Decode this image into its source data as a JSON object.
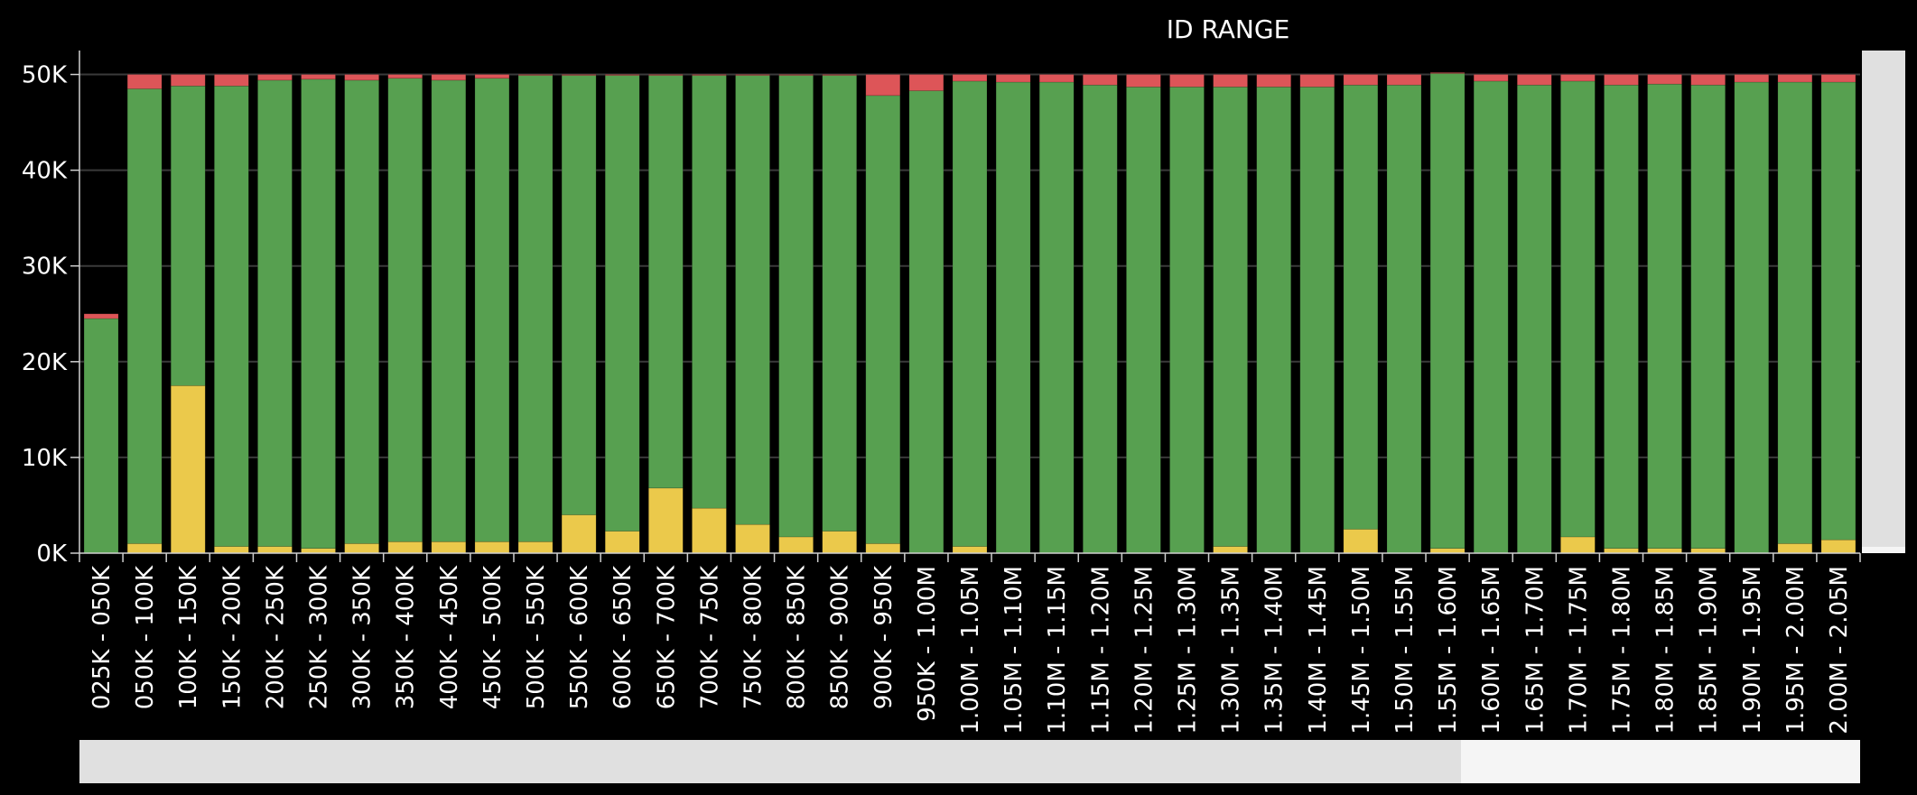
{
  "chart_data": {
    "type": "bar",
    "stacked": true,
    "title": "ID RANGE",
    "xlabel": "",
    "ylabel": "",
    "ylim": [
      0,
      52500
    ],
    "y_ticks": [
      {
        "value": 0,
        "label": "0K"
      },
      {
        "value": 10000,
        "label": "10K"
      },
      {
        "value": 20000,
        "label": "20K"
      },
      {
        "value": 30000,
        "label": "30K"
      },
      {
        "value": 40000,
        "label": "40K"
      },
      {
        "value": 50000,
        "label": "50K"
      }
    ],
    "grid": true,
    "legend": "none",
    "categories": [
      "025K - 050K",
      "050K - 100K",
      "100K - 150K",
      "150K - 200K",
      "200K - 250K",
      "250K - 300K",
      "300K - 350K",
      "350K - 400K",
      "400K - 450K",
      "450K - 500K",
      "500K - 550K",
      "550K - 600K",
      "600K - 650K",
      "650K - 700K",
      "700K - 750K",
      "750K - 800K",
      "800K - 850K",
      "850K - 900K",
      "900K - 950K",
      "950K - 1.00M",
      "1.00M - 1.05M",
      "1.05M - 1.10M",
      "1.10M - 1.15M",
      "1.15M - 1.20M",
      "1.20M - 1.25M",
      "1.25M - 1.30M",
      "1.30M - 1.35M",
      "1.35M - 1.40M",
      "1.40M - 1.45M",
      "1.45M - 1.50M",
      "1.50M - 1.55M",
      "1.55M - 1.60M",
      "1.60M - 1.65M",
      "1.65M - 1.70M",
      "1.70M - 1.75M",
      "1.75M - 1.80M",
      "1.80M - 1.85M",
      "1.85M - 1.90M",
      "1.90M - 1.95M",
      "1.95M - 2.00M",
      "2.00M - 2.05M"
    ],
    "series": [
      {
        "color": "#ebc94b",
        "values": [
          0,
          1000,
          17500,
          700,
          700,
          500,
          1000,
          1200,
          1200,
          1200,
          1200,
          4000,
          2300,
          6800,
          4700,
          3000,
          1700,
          2300,
          1000,
          0,
          700,
          0,
          0,
          0,
          0,
          0,
          700,
          0,
          0,
          2500,
          0,
          500,
          0,
          0,
          1700,
          500,
          500,
          500,
          0,
          1000,
          1400
        ]
      },
      {
        "color": "#57a050",
        "values": [
          24500,
          47500,
          31300,
          48100,
          48700,
          49000,
          48400,
          48400,
          48200,
          48400,
          48700,
          45900,
          47600,
          43100,
          45200,
          46900,
          48200,
          47600,
          46800,
          48300,
          48600,
          49200,
          49200,
          48900,
          48700,
          48700,
          48000,
          48700,
          48700,
          46400,
          48900,
          49600,
          49300,
          48900,
          47600,
          48400,
          48500,
          48400,
          49200,
          48200,
          47800
        ]
      },
      {
        "color": "#dd5558",
        "values": [
          500,
          1500,
          1200,
          1200,
          600,
          500,
          600,
          400,
          600,
          400,
          100,
          100,
          100,
          100,
          100,
          100,
          100,
          100,
          2200,
          1700,
          700,
          800,
          800,
          1100,
          1300,
          1300,
          1300,
          1300,
          1300,
          1100,
          1100,
          100,
          700,
          1100,
          700,
          1100,
          1000,
          1100,
          800,
          800,
          800
        ]
      }
    ]
  },
  "colors": {
    "background": "#000000",
    "gridline": "#3a3a3a",
    "axis": "#cfcfcf",
    "text": "#ffffff",
    "scrollbar_track": "#f5f5f5",
    "scrollbar_thumb": "#e0e0e0"
  }
}
